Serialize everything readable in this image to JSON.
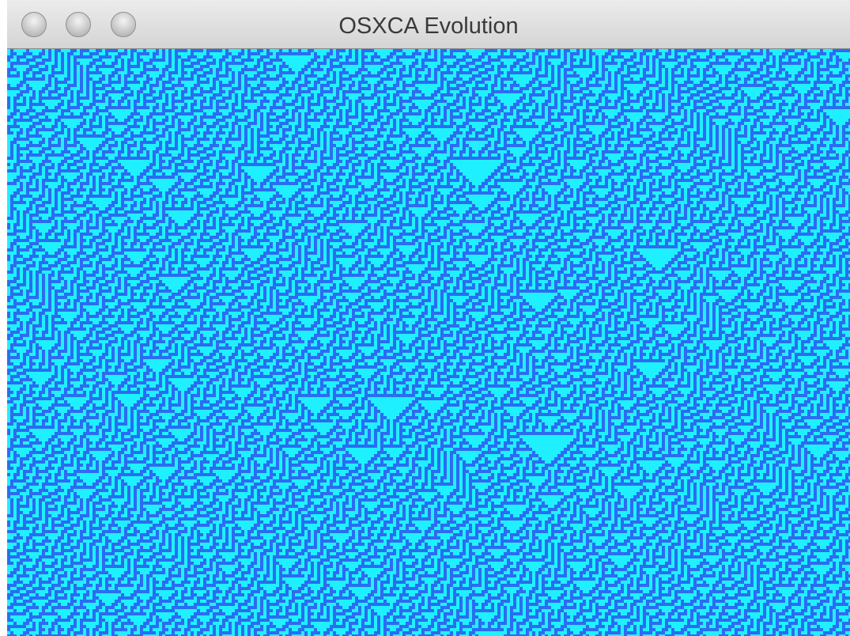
{
  "window": {
    "title": "OSXCA Evolution"
  }
}
